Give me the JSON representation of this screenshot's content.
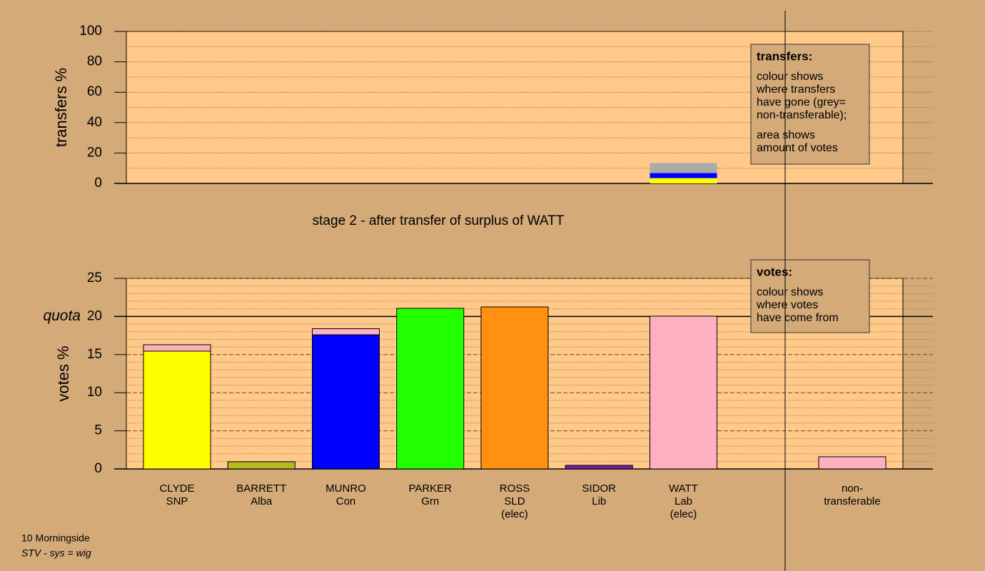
{
  "chart_data": [
    {
      "type": "bar",
      "ylabel": "transfers %",
      "ylim": [
        0,
        100
      ],
      "yticks": [
        0,
        20,
        40,
        60,
        80,
        100
      ],
      "minor_yticks": [
        10,
        30,
        50,
        70,
        90
      ],
      "grid": true,
      "bars": [
        null,
        null,
        null,
        null,
        null,
        null,
        {
          "segments": [
            {
              "value": 3.5,
              "color": "#ffff00"
            },
            {
              "value": 3.3,
              "color": "#0000ff"
            },
            {
              "value": 6.6,
              "color": "#aaaaaa"
            }
          ]
        },
        null,
        null
      ],
      "note": {
        "title": "transfers:",
        "paragraphs": [
          [
            "colour shows",
            "where transfers",
            "have gone (grey=",
            "non-transferable);"
          ],
          [
            "area shows",
            "amount of votes"
          ]
        ]
      }
    },
    {
      "type": "bar",
      "ylabel": "votes %",
      "ylim": [
        0,
        25
      ],
      "yticks": [
        0,
        5,
        10,
        15,
        20,
        25
      ],
      "minor_yticks": [
        1,
        2,
        3,
        4,
        6,
        7,
        8,
        9,
        11,
        12,
        13,
        14,
        16,
        17,
        18,
        19,
        21,
        22,
        23,
        24
      ],
      "grid": true,
      "quota": {
        "value": 20,
        "label": "quota"
      },
      "bars": [
        {
          "label": [
            "CLYDE",
            "SNP"
          ],
          "segments": [
            {
              "value": 15.45,
              "color": "#ffff00"
            },
            {
              "value": 0.85,
              "color": "#ffb0c0"
            }
          ]
        },
        {
          "label": [
            "BARRETT",
            "Alba"
          ],
          "segments": [
            {
              "value": 0.94,
              "color": "#b8b820"
            }
          ]
        },
        {
          "label": [
            "MUNRO",
            "Con"
          ],
          "segments": [
            {
              "value": 17.6,
              "color": "#0000ff"
            },
            {
              "value": 0.8,
              "color": "#ffb0c0"
            }
          ]
        },
        {
          "label": [
            "PARKER",
            "Grn"
          ],
          "segments": [
            {
              "value": 21.07,
              "color": "#22ff00"
            }
          ]
        },
        {
          "label": [
            "ROSS",
            "SLD",
            "(elec)"
          ],
          "segments": [
            {
              "value": 21.25,
              "color": "#ff9010"
            }
          ]
        },
        {
          "label": [
            "SIDOR",
            "Lib"
          ],
          "segments": [
            {
              "value": 0.47,
              "color": "#7020a0"
            }
          ]
        },
        {
          "label": [
            "WATT",
            "Lab",
            "(elec)"
          ],
          "segments": [
            {
              "value": 20.04,
              "color": "#ffb0c0"
            }
          ]
        },
        null,
        {
          "label": [
            "non-",
            "transferable"
          ],
          "segments": [
            {
              "value": 1.6,
              "color": "#ffb0c0"
            }
          ]
        }
      ],
      "note": {
        "title": "votes:",
        "paragraphs": [
          [
            "colour shows",
            "where votes",
            "have come from"
          ]
        ]
      }
    }
  ],
  "stage": "stage 2 - after transfer of surplus of WATT",
  "footer": {
    "place": "10 Morningside",
    "system": "STV - sys = wig"
  }
}
